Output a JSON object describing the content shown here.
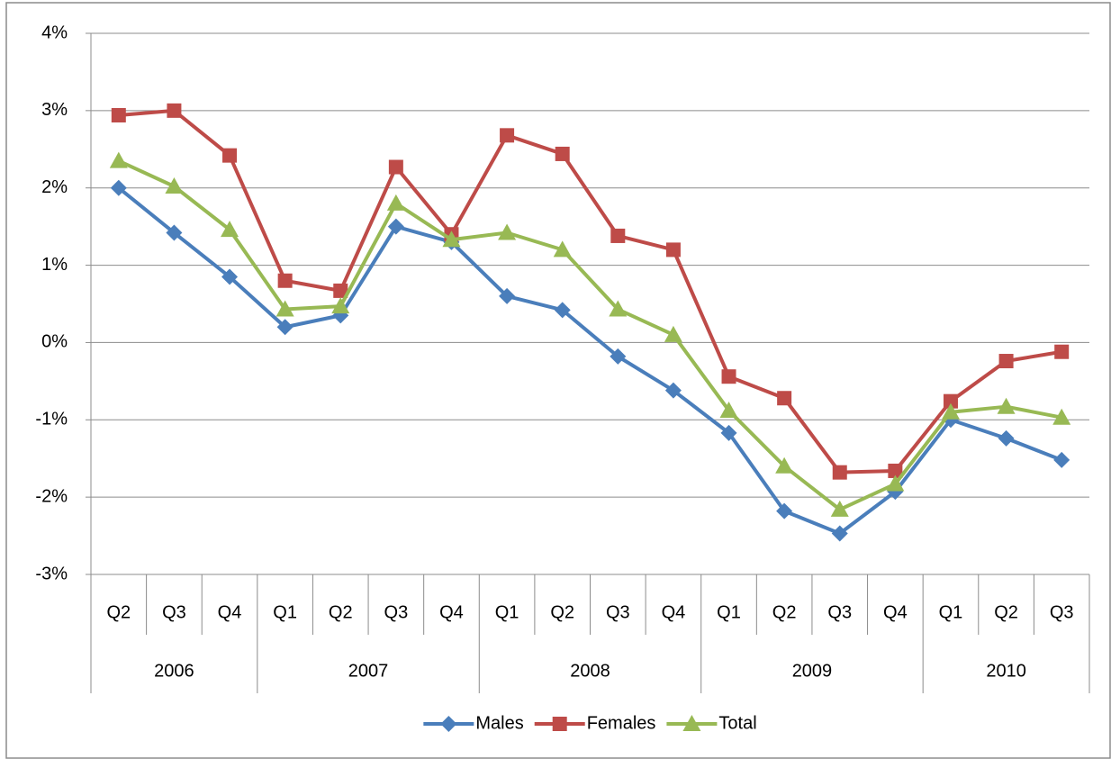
{
  "chart_data": {
    "type": "line",
    "categories": [
      "Q2",
      "Q3",
      "Q4",
      "Q1",
      "Q2",
      "Q3",
      "Q4",
      "Q1",
      "Q2",
      "Q3",
      "Q4",
      "Q1",
      "Q2",
      "Q3",
      "Q4",
      "Q1",
      "Q2",
      "Q3"
    ],
    "groups": [
      {
        "label": "2006",
        "span": 3
      },
      {
        "label": "2007",
        "span": 4
      },
      {
        "label": "2008",
        "span": 4
      },
      {
        "label": "2009",
        "span": 4
      },
      {
        "label": "2010",
        "span": 3
      }
    ],
    "series": [
      {
        "name": "Males",
        "color": "#4a7ebb",
        "marker": "diamond",
        "values": [
          2.0,
          1.42,
          0.85,
          0.2,
          0.35,
          1.5,
          1.3,
          0.6,
          0.42,
          -0.18,
          -0.62,
          -1.17,
          -2.18,
          -2.47,
          -1.93,
          -1.0,
          -1.24,
          -1.52
        ]
      },
      {
        "name": "Females",
        "color": "#be4b48",
        "marker": "square",
        "values": [
          2.94,
          3.0,
          2.42,
          0.8,
          0.67,
          2.27,
          1.4,
          2.68,
          2.44,
          1.38,
          1.2,
          -0.44,
          -0.72,
          -1.68,
          -1.66,
          -0.76,
          -0.24,
          -0.12
        ]
      },
      {
        "name": "Total",
        "color": "#98b954",
        "marker": "triangle",
        "values": [
          2.35,
          2.02,
          1.46,
          0.43,
          0.47,
          1.8,
          1.33,
          1.42,
          1.2,
          0.43,
          0.1,
          -0.88,
          -1.6,
          -2.16,
          -1.83,
          -0.9,
          -0.83,
          -0.97
        ]
      }
    ],
    "ylim": [
      -3,
      4
    ],
    "yticks": [
      {
        "value": -3,
        "label": "-3%"
      },
      {
        "value": -2,
        "label": "-2%"
      },
      {
        "value": -1,
        "label": "-1%"
      },
      {
        "value": 0,
        "label": "0%"
      },
      {
        "value": 1,
        "label": "1%"
      },
      {
        "value": 2,
        "label": "2%"
      },
      {
        "value": 3,
        "label": "3%"
      },
      {
        "value": 4,
        "label": "4%"
      }
    ],
    "grid": true,
    "legend": "bottom"
  }
}
